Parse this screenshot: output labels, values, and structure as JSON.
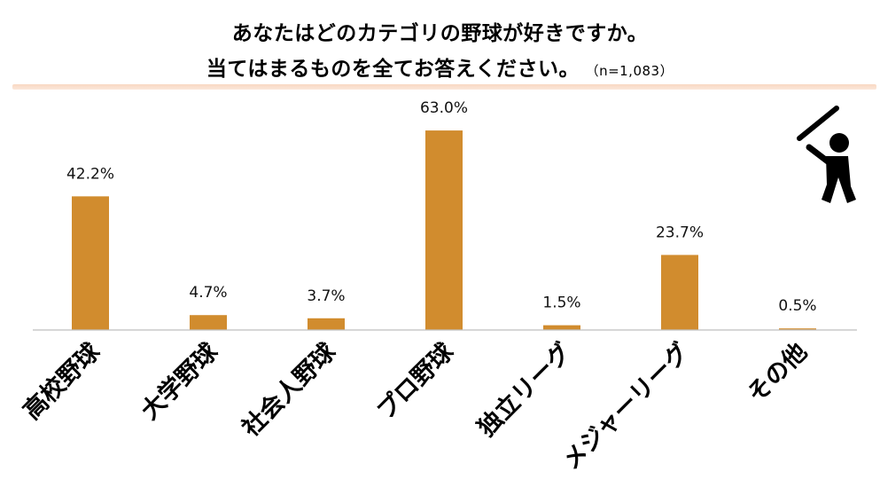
{
  "chart_data": {
    "type": "bar",
    "title_line1": "あなたはどのカテゴリの野球が好きですか。",
    "title_line2": "当てはまるものを全てお答えください。",
    "sample_size": "（n=1,083）",
    "categories": [
      "高校野球",
      "大学野球",
      "社会人野球",
      "プロ野球",
      "独立リーグ",
      "メジャーリーグ",
      "その他"
    ],
    "values": [
      42.2,
      4.7,
      3.7,
      63.0,
      1.5,
      23.7,
      0.5
    ],
    "value_labels": [
      "42.2%",
      "4.7%",
      "3.7%",
      "63.0%",
      "1.5%",
      "23.7%",
      "0.5%"
    ],
    "unit": "%",
    "ylim": [
      0,
      70
    ],
    "bar_color": "#d18c2e",
    "grid": false,
    "icon": "baseball-batter-icon"
  }
}
